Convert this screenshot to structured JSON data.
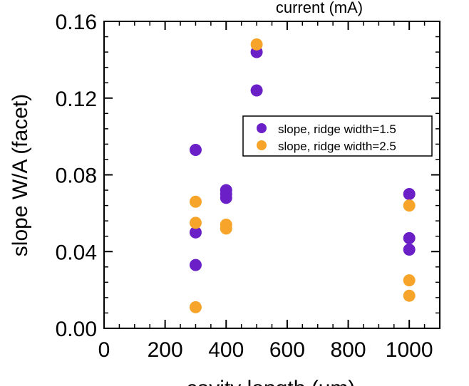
{
  "chart_data": {
    "type": "scatter",
    "top_label": "current (mA)",
    "xlabel": "cavity length (um)",
    "ylabel": "slope W/A (facet)",
    "xlim": [
      0,
      1100
    ],
    "ylim": [
      0,
      0.16
    ],
    "xticks": [
      0,
      200,
      400,
      600,
      800,
      1000
    ],
    "xtick_labels": [
      "0",
      "200",
      "400",
      "600",
      "800",
      "1000"
    ],
    "yticks": [
      0,
      0.04,
      0.08,
      0.12,
      0.16
    ],
    "ytick_labels": [
      "0.00",
      "0.04",
      "0.08",
      "0.12",
      "0.16"
    ],
    "grid": false,
    "legend_position": "center-right",
    "series": [
      {
        "name": "slope, ridge width=1.5",
        "color": "#6a1fc7",
        "points": [
          {
            "x": 300,
            "y": 0.093
          },
          {
            "x": 300,
            "y": 0.05
          },
          {
            "x": 300,
            "y": 0.033
          },
          {
            "x": 400,
            "y": 0.072
          },
          {
            "x": 400,
            "y": 0.07
          },
          {
            "x": 400,
            "y": 0.068
          },
          {
            "x": 500,
            "y": 0.144
          },
          {
            "x": 500,
            "y": 0.124
          },
          {
            "x": 1000,
            "y": 0.07
          },
          {
            "x": 1000,
            "y": 0.047
          },
          {
            "x": 1000,
            "y": 0.041
          }
        ]
      },
      {
        "name": "slope, ridge width=2.5",
        "color": "#f7a52a",
        "points": [
          {
            "x": 300,
            "y": 0.066
          },
          {
            "x": 300,
            "y": 0.055
          },
          {
            "x": 300,
            "y": 0.011
          },
          {
            "x": 400,
            "y": 0.054
          },
          {
            "x": 400,
            "y": 0.052
          },
          {
            "x": 500,
            "y": 0.148
          },
          {
            "x": 1000,
            "y": 0.064
          },
          {
            "x": 1000,
            "y": 0.025
          },
          {
            "x": 1000,
            "y": 0.017
          }
        ]
      }
    ]
  }
}
